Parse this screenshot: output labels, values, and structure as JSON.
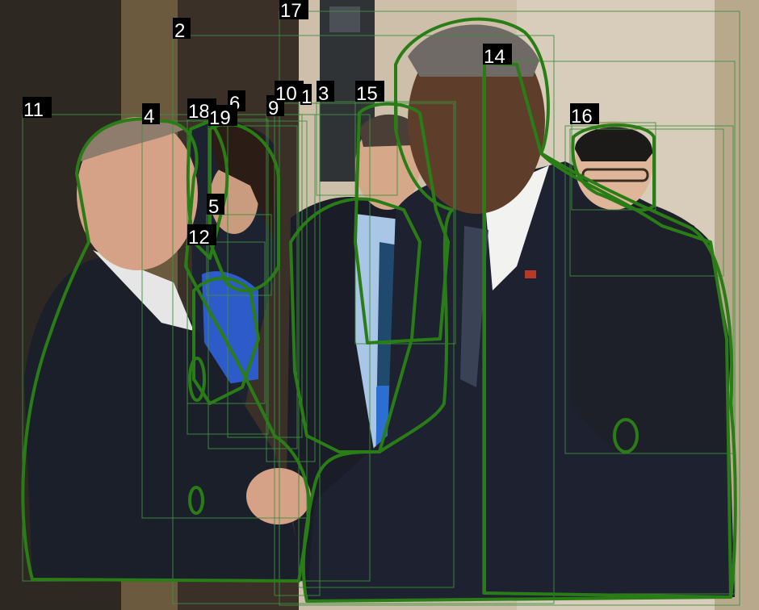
{
  "image": {
    "description_tags": [
      "segmentation-overlay",
      "numbered-instance-labels"
    ],
    "colors": {
      "mask_outline": "#2a7d16",
      "bbox_outline": "#3f8f3f",
      "label_bg": "#000000",
      "label_text": "#ffffff",
      "wall": "#cfc4b2",
      "door_frame": "#6b5a3e",
      "suit_dark": "#1b1f2a",
      "lanyard_blue": "#2c6fd1",
      "skin": "#d8a888"
    }
  },
  "instances": [
    {
      "id": "2",
      "label": "2"
    },
    {
      "id": "3",
      "label": "3"
    },
    {
      "id": "4",
      "label": "4"
    },
    {
      "id": "5",
      "label": "5"
    },
    {
      "id": "6",
      "label": "6"
    },
    {
      "id": "9",
      "label": "9"
    },
    {
      "id": "10",
      "label": "10"
    },
    {
      "id": "11",
      "label": "11"
    },
    {
      "id": "12",
      "label": "12"
    },
    {
      "id": "14",
      "label": "14"
    },
    {
      "id": "15",
      "label": "15"
    },
    {
      "id": "16",
      "label": "16"
    },
    {
      "id": "17",
      "label": "17"
    },
    {
      "id": "18",
      "label": "18"
    },
    {
      "id": "19",
      "label": "19"
    },
    {
      "id": "1",
      "label": "1"
    }
  ]
}
